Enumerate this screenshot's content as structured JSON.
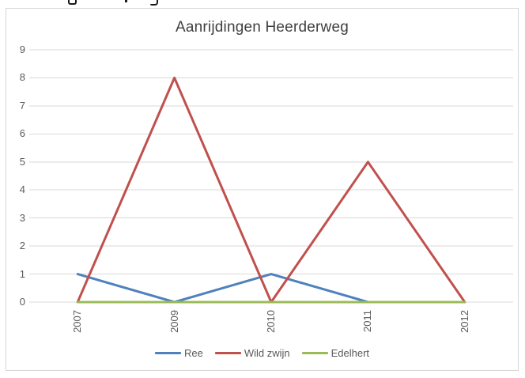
{
  "chart_data": {
    "type": "line",
    "title": "Aanrijdingen Heerderweg",
    "categories": [
      "2007",
      "2009",
      "2010",
      "2011",
      "2012"
    ],
    "series": [
      {
        "name": "Ree",
        "color": "#4f81bd",
        "values": [
          1,
          0,
          1,
          0,
          null
        ]
      },
      {
        "name": "Wild zwijn",
        "color": "#c0504d",
        "values": [
          0,
          8,
          0,
          5,
          0
        ]
      },
      {
        "name": "Edelhert",
        "color": "#9bbb59",
        "values": [
          0,
          0,
          0,
          0,
          0
        ]
      }
    ],
    "ylim": [
      0,
      9
    ],
    "yticks": [
      0,
      1,
      2,
      3,
      4,
      5,
      6,
      7,
      8,
      9
    ],
    "xlabel": "",
    "ylabel": "",
    "grid": true,
    "x_label_rotation_deg": 90,
    "legend_position": "bottom",
    "grid_color": "#d9d9d9",
    "tick_text_color": "#595959",
    "title_color": "#3f3f3f",
    "border_color": "#d7d7d7",
    "background_color": "#ffffff"
  }
}
